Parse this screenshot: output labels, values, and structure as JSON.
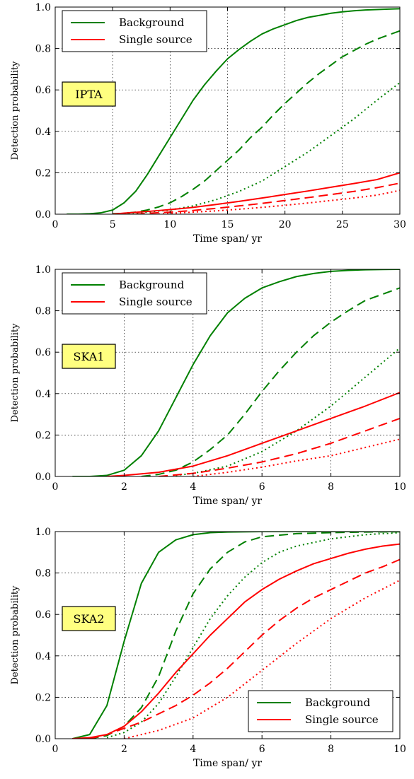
{
  "chart_data": [
    {
      "type": "line",
      "xlabel": "Time span/ yr",
      "ylabel": "Detection probability",
      "xlim": [
        0,
        30
      ],
      "ylim": [
        0,
        1.0
      ],
      "xticks": [
        0,
        5,
        10,
        15,
        20,
        25,
        30
      ],
      "xtick_labels": [
        "0",
        "5",
        "10",
        "15",
        "20",
        "25",
        "30"
      ],
      "yticks": [
        0,
        0.2,
        0.4,
        0.6,
        0.8,
        1.0
      ],
      "ytick_labels": [
        "0.0",
        "0.2",
        "0.4",
        "0.6",
        "0.8",
        "1.0"
      ],
      "grid": true,
      "annotation": "IPTA",
      "legend": {
        "placement": "top-left",
        "entries": [
          {
            "label": "Background",
            "color": "#008000"
          },
          {
            "label": "Single source",
            "color": "#ff0000"
          }
        ]
      },
      "series": [
        {
          "name": "Background",
          "color": "#008000",
          "dash": "solid",
          "x": [
            1,
            2,
            3,
            4,
            5,
            6,
            7,
            8,
            9,
            10,
            11,
            12,
            13,
            14,
            15,
            16,
            17,
            18,
            19,
            20,
            21,
            22,
            23,
            24,
            25,
            26,
            27,
            28,
            29,
            30
          ],
          "y": [
            0,
            0,
            0.002,
            0.007,
            0.02,
            0.055,
            0.11,
            0.19,
            0.28,
            0.37,
            0.46,
            0.55,
            0.625,
            0.69,
            0.75,
            0.795,
            0.835,
            0.87,
            0.895,
            0.915,
            0.935,
            0.95,
            0.96,
            0.97,
            0.977,
            0.982,
            0.986,
            0.988,
            0.99,
            0.992
          ]
        },
        {
          "color": "#008000",
          "dash": "dashed",
          "x": [
            5,
            6,
            7,
            8,
            9,
            10,
            11,
            12,
            13,
            14,
            15,
            16,
            17,
            18,
            19,
            20,
            21,
            22,
            23,
            24,
            25,
            26,
            27,
            28,
            29,
            30
          ],
          "y": [
            0.002,
            0.004,
            0.01,
            0.02,
            0.035,
            0.055,
            0.085,
            0.12,
            0.16,
            0.21,
            0.26,
            0.31,
            0.37,
            0.42,
            0.48,
            0.535,
            0.585,
            0.635,
            0.68,
            0.72,
            0.76,
            0.79,
            0.82,
            0.845,
            0.865,
            0.885
          ]
        },
        {
          "color": "#008000",
          "dash": "dotted",
          "x": [
            6,
            8,
            10,
            12,
            14,
            16,
            18,
            20,
            22,
            24,
            26,
            28,
            30
          ],
          "y": [
            0.003,
            0.01,
            0.02,
            0.04,
            0.07,
            0.11,
            0.16,
            0.23,
            0.3,
            0.38,
            0.46,
            0.55,
            0.635
          ]
        },
        {
          "name": "Single source",
          "color": "#ff0000",
          "dash": "solid",
          "x": [
            5,
            6,
            8,
            10,
            12,
            14,
            16,
            18,
            20,
            22,
            24,
            26,
            28,
            30
          ],
          "y": [
            0,
            0.005,
            0.013,
            0.022,
            0.033,
            0.047,
            0.062,
            0.078,
            0.095,
            0.112,
            0.13,
            0.148,
            0.167,
            0.2
          ]
        },
        {
          "color": "#ff0000",
          "dash": "dashed",
          "x": [
            7,
            8,
            10,
            12,
            14,
            16,
            18,
            20,
            22,
            24,
            26,
            28,
            30
          ],
          "y": [
            0,
            0.004,
            0.01,
            0.018,
            0.028,
            0.04,
            0.052,
            0.066,
            0.08,
            0.095,
            0.11,
            0.128,
            0.15
          ]
        },
        {
          "color": "#ff0000",
          "dash": "dotted",
          "x": [
            9,
            10,
            12,
            14,
            16,
            18,
            20,
            22,
            24,
            26,
            28,
            30
          ],
          "y": [
            0,
            0.004,
            0.01,
            0.016,
            0.024,
            0.033,
            0.043,
            0.054,
            0.066,
            0.078,
            0.092,
            0.115
          ]
        }
      ]
    },
    {
      "type": "line",
      "xlabel": "Time span/ yr",
      "ylabel": "Detection probability",
      "xlim": [
        0,
        10
      ],
      "ylim": [
        0,
        1.0
      ],
      "xticks": [
        0,
        2,
        4,
        6,
        8,
        10
      ],
      "xtick_labels": [
        "0",
        "2",
        "4",
        "6",
        "8",
        "10"
      ],
      "yticks": [
        0,
        0.2,
        0.4,
        0.6,
        0.8,
        1.0
      ],
      "ytick_labels": [
        "0.0",
        "0.2",
        "0.4",
        "0.6",
        "0.8",
        "1.0"
      ],
      "grid": true,
      "annotation": "SKA1",
      "legend": {
        "placement": "top-left",
        "entries": [
          {
            "label": "Background",
            "color": "#008000"
          },
          {
            "label": "Single source",
            "color": "#ff0000"
          }
        ]
      },
      "series": [
        {
          "name": "Background",
          "color": "#008000",
          "dash": "solid",
          "x": [
            0.5,
            1,
            1.5,
            2,
            2.5,
            3,
            3.5,
            4,
            4.5,
            5,
            5.5,
            6,
            6.5,
            7,
            7.5,
            8,
            8.5,
            9,
            9.5,
            10
          ],
          "y": [
            0,
            0,
            0.005,
            0.03,
            0.1,
            0.22,
            0.38,
            0.54,
            0.68,
            0.79,
            0.86,
            0.91,
            0.94,
            0.965,
            0.98,
            0.99,
            0.995,
            0.998,
            0.999,
            1.0
          ]
        },
        {
          "color": "#008000",
          "dash": "dashed",
          "x": [
            2.5,
            3,
            3.5,
            4,
            4.5,
            5,
            5.5,
            6,
            6.5,
            7,
            7.5,
            8,
            8.5,
            9,
            9.5,
            10
          ],
          "y": [
            0,
            0.01,
            0.03,
            0.07,
            0.13,
            0.2,
            0.3,
            0.41,
            0.51,
            0.6,
            0.68,
            0.745,
            0.8,
            0.85,
            0.88,
            0.91
          ]
        },
        {
          "color": "#008000",
          "dash": "dotted",
          "x": [
            3.5,
            4,
            5,
            6,
            7,
            8,
            9,
            10
          ],
          "y": [
            0.005,
            0.015,
            0.05,
            0.12,
            0.22,
            0.34,
            0.48,
            0.62
          ]
        },
        {
          "name": "Single source",
          "color": "#ff0000",
          "dash": "solid",
          "x": [
            1.5,
            2,
            3,
            4,
            5,
            6,
            7,
            8,
            9,
            10
          ],
          "y": [
            0,
            0.005,
            0.02,
            0.05,
            0.1,
            0.16,
            0.22,
            0.28,
            0.34,
            0.405
          ]
        },
        {
          "color": "#ff0000",
          "dash": "dashed",
          "x": [
            3,
            4,
            5,
            6,
            7,
            8,
            9,
            10
          ],
          "y": [
            0,
            0.015,
            0.04,
            0.07,
            0.11,
            0.16,
            0.22,
            0.28
          ]
        },
        {
          "color": "#ff0000",
          "dash": "dotted",
          "x": [
            4,
            5,
            6,
            7,
            8,
            9,
            10
          ],
          "y": [
            0,
            0.02,
            0.045,
            0.075,
            0.1,
            0.14,
            0.18
          ]
        }
      ]
    },
    {
      "type": "line",
      "xlabel": "Time span/ yr",
      "ylabel": "Detection probability",
      "xlim": [
        0,
        10
      ],
      "ylim": [
        0,
        1.0
      ],
      "xticks": [
        0,
        2,
        4,
        6,
        8,
        10
      ],
      "xtick_labels": [
        "0",
        "2",
        "4",
        "6",
        "8",
        "10"
      ],
      "yticks": [
        0,
        0.2,
        0.4,
        0.6,
        0.8,
        1.0
      ],
      "ytick_labels": [
        "0.0",
        "0.2",
        "0.4",
        "0.6",
        "0.8",
        "1.0"
      ],
      "grid": true,
      "annotation": "SKA2",
      "legend": {
        "placement": "bottom-right",
        "entries": [
          {
            "label": "Background",
            "color": "#008000"
          },
          {
            "label": "Single source",
            "color": "#ff0000"
          }
        ]
      },
      "series": [
        {
          "name": "Background",
          "color": "#008000",
          "dash": "solid",
          "x": [
            0.5,
            1,
            1.5,
            2,
            2.5,
            3,
            3.5,
            4,
            4.5,
            5,
            6,
            8,
            10
          ],
          "y": [
            0,
            0.02,
            0.16,
            0.47,
            0.75,
            0.9,
            0.96,
            0.985,
            0.995,
            0.998,
            1.0,
            1.0,
            1.0
          ]
        },
        {
          "color": "#008000",
          "dash": "dashed",
          "x": [
            1,
            1.5,
            2,
            2.5,
            3,
            3.5,
            4,
            4.5,
            5,
            5.5,
            6,
            7,
            8,
            9,
            10
          ],
          "y": [
            0,
            0.015,
            0.06,
            0.15,
            0.3,
            0.52,
            0.7,
            0.82,
            0.9,
            0.95,
            0.975,
            0.99,
            0.995,
            0.998,
            0.999
          ]
        },
        {
          "color": "#008000",
          "dash": "dotted",
          "x": [
            1.5,
            2,
            2.5,
            3,
            3.5,
            4,
            4.5,
            5,
            5.5,
            6,
            6.5,
            7,
            8,
            9,
            10
          ],
          "y": [
            0.005,
            0.03,
            0.08,
            0.17,
            0.3,
            0.44,
            0.58,
            0.69,
            0.78,
            0.85,
            0.9,
            0.93,
            0.965,
            0.985,
            0.995
          ]
        },
        {
          "name": "Single source",
          "color": "#ff0000",
          "dash": "solid",
          "x": [
            0.5,
            1,
            1.5,
            2,
            2.5,
            3,
            3.5,
            4,
            4.5,
            5,
            5.5,
            6,
            6.5,
            7,
            7.5,
            8,
            8.5,
            9,
            9.5,
            10
          ],
          "y": [
            0,
            0.005,
            0.02,
            0.06,
            0.13,
            0.22,
            0.32,
            0.41,
            0.5,
            0.58,
            0.66,
            0.72,
            0.77,
            0.81,
            0.845,
            0.87,
            0.895,
            0.915,
            0.93,
            0.94
          ]
        },
        {
          "color": "#ff0000",
          "dash": "dashed",
          "x": [
            1,
            1.5,
            2,
            2.5,
            3,
            3.5,
            4,
            4.5,
            5,
            5.5,
            6,
            6.5,
            7,
            7.5,
            8,
            8.5,
            9,
            9.5,
            10
          ],
          "y": [
            0,
            0.02,
            0.05,
            0.08,
            0.12,
            0.16,
            0.21,
            0.27,
            0.34,
            0.42,
            0.5,
            0.57,
            0.63,
            0.68,
            0.72,
            0.76,
            0.8,
            0.83,
            0.865
          ]
        },
        {
          "color": "#ff0000",
          "dash": "dotted",
          "x": [
            2,
            3,
            4,
            5,
            6,
            7,
            8,
            9,
            10
          ],
          "y": [
            0,
            0.04,
            0.1,
            0.2,
            0.33,
            0.46,
            0.58,
            0.68,
            0.765
          ]
        }
      ]
    }
  ]
}
